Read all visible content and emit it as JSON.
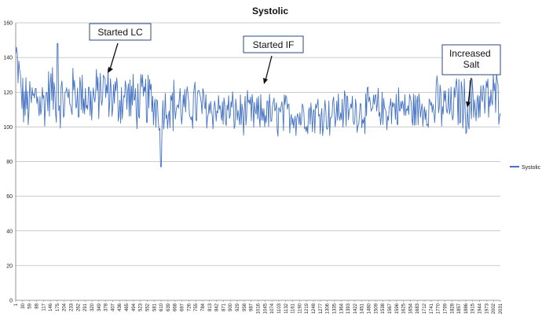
{
  "chart_data": {
    "type": "line",
    "title": "Systolic",
    "xlabel": "",
    "ylabel": "",
    "ylim": [
      0,
      160
    ],
    "yticks": [
      0,
      20,
      40,
      60,
      80,
      100,
      120,
      140,
      160
    ],
    "x_range": [
      1,
      2031
    ],
    "xtick_labels": [
      "1",
      "30",
      "59",
      "88",
      "117",
      "146",
      "175",
      "204",
      "233",
      "262",
      "291",
      "320",
      "349",
      "378",
      "407",
      "436",
      "465",
      "494",
      "523",
      "552",
      "581",
      "610",
      "639",
      "668",
      "697",
      "726",
      "755",
      "784",
      "813",
      "842",
      "871",
      "900",
      "929",
      "958",
      "987",
      "1016",
      "1045",
      "1074",
      "1103",
      "1132",
      "1161",
      "1190",
      "1219",
      "1248",
      "1277",
      "1306",
      "1335",
      "1364",
      "1393",
      "1422",
      "1451",
      "1480",
      "1509",
      "1538",
      "1567",
      "1596",
      "1625",
      "1654",
      "1683",
      "1712",
      "1741",
      "1770",
      "1799",
      "1828",
      "1857",
      "1886",
      "1915",
      "1944",
      "1973",
      "2002",
      "2031"
    ],
    "grid": true,
    "legend_position": "right",
    "series": [
      {
        "name": "Systolic",
        "color": "#4472c4",
        "x": [
          1,
          30,
          59,
          88,
          117,
          146,
          175,
          204,
          233,
          262,
          291,
          320,
          349,
          378,
          407,
          436,
          465,
          494,
          523,
          552,
          581,
          610,
          639,
          668,
          697,
          726,
          755,
          784,
          813,
          842,
          871,
          900,
          929,
          958,
          987,
          1016,
          1045,
          1074,
          1103,
          1132,
          1161,
          1190,
          1219,
          1248,
          1277,
          1306,
          1335,
          1364,
          1393,
          1422,
          1451,
          1480,
          1509,
          1538,
          1567,
          1596,
          1625,
          1654,
          1683,
          1712,
          1741,
          1770,
          1799,
          1828,
          1857,
          1886,
          1915,
          1944,
          1973,
          2002,
          2031
        ],
        "values": [
          142,
          115,
          112,
          118,
          113,
          121,
          116,
          114,
          118,
          120,
          117,
          115,
          119,
          121,
          117,
          116,
          118,
          115,
          114,
          116,
          113,
          112,
          111,
          113,
          112,
          111,
          113,
          112,
          110,
          111,
          108,
          109,
          108,
          107,
          108,
          106,
          109,
          107,
          106,
          107,
          108,
          106,
          108,
          107,
          109,
          107,
          108,
          110,
          109,
          110,
          109,
          110,
          111,
          109,
          110,
          112,
          110,
          111,
          109,
          112,
          111,
          113,
          112,
          111,
          115,
          112,
          113,
          116,
          115,
          117,
          118
        ],
        "min_point": {
          "x": 610,
          "y": 77
        },
        "max_point": {
          "x": 175,
          "y": 148
        }
      }
    ],
    "annotations": [
      {
        "text": "Started LC"
      },
      {
        "text": "Started IF"
      },
      {
        "text": "Increased Salt"
      }
    ]
  }
}
